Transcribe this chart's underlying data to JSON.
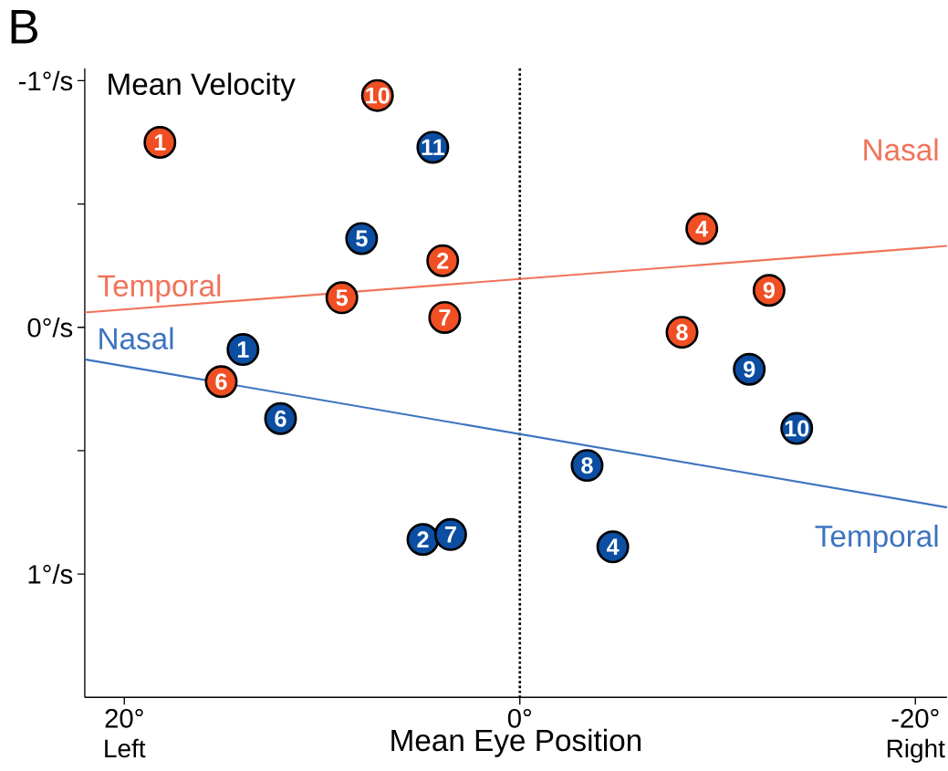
{
  "chart_data": {
    "type": "scatter",
    "title": "B",
    "xlabel": "Mean Eye Position",
    "ylabel": "Mean Velocity",
    "xlim": [
      22,
      -21.6
    ],
    "ylim": [
      1.5,
      -1.05
    ],
    "xticks": [
      {
        "value": 20,
        "label": "20°"
      },
      {
        "value": 0,
        "label": "0°"
      },
      {
        "value": -20,
        "label": "-20°"
      }
    ],
    "yticks": [
      {
        "value": -1,
        "label": "-1°/s"
      },
      {
        "value": -0.5,
        "label": null
      },
      {
        "value": 0,
        "label": "0°/s"
      },
      {
        "value": 0.5,
        "label": null
      },
      {
        "value": 1,
        "label": "1°/s"
      }
    ],
    "grid": false,
    "series": [
      {
        "type": "line",
        "marker": "none",
        "color": "#f0735a",
        "x": [
          22,
          -21.6
        ],
        "values": [
          -0.06,
          -0.33
        ]
      },
      {
        "type": "line",
        "marker": "none",
        "color": "#3d73c0",
        "x": [
          22,
          -21.6
        ],
        "values": [
          0.13,
          0.73
        ]
      },
      {
        "marker": "circle",
        "color": "#f04e23",
        "x": [
          18.2,
          7.2,
          -9.2,
          3.9,
          -12.6,
          9.0,
          3.8,
          -8.2,
          15.1
        ],
        "values": [
          -0.75,
          -0.94,
          -0.4,
          -0.27,
          -0.15,
          -0.12,
          -0.04,
          0.02,
          0.22
        ]
      },
      {
        "marker": "circle",
        "color": "#0b4ea2",
        "x": [
          4.4,
          8.0,
          14.0,
          12.1,
          -11.6,
          -14.0,
          -3.4,
          4.9,
          3.5,
          -4.7
        ],
        "values": [
          -0.73,
          -0.36,
          0.09,
          0.37,
          0.17,
          0.41,
          0.56,
          0.86,
          0.84,
          0.89
        ]
      }
    ],
    "ref_lines": [
      {
        "axis": "x",
        "value": 0,
        "color": "#000000",
        "line_style": "dotted"
      }
    ],
    "annotations": [
      "Temporal",
      "Nasal",
      "Nasal",
      "Temporal",
      "Left",
      "Right",
      {
        "text": "1",
        "x": 18.2,
        "y": -0.75
      },
      {
        "text": "10",
        "x": 7.2,
        "y": -0.94
      },
      {
        "text": "4",
        "x": -9.2,
        "y": -0.4
      },
      {
        "text": "2",
        "x": 3.9,
        "y": -0.27
      },
      {
        "text": "9",
        "x": -12.6,
        "y": -0.15
      },
      {
        "text": "5",
        "x": 9.0,
        "y": -0.12
      },
      {
        "text": "7",
        "x": 3.8,
        "y": -0.04
      },
      {
        "text": "8",
        "x": -8.2,
        "y": 0.02
      },
      {
        "text": "6",
        "x": 15.1,
        "y": 0.22
      },
      {
        "text": "11",
        "x": 4.4,
        "y": -0.73
      },
      {
        "text": "5",
        "x": 8.0,
        "y": -0.36
      },
      {
        "text": "1",
        "x": 14.0,
        "y": 0.09
      },
      {
        "text": "6",
        "x": 12.1,
        "y": 0.37
      },
      {
        "text": "9",
        "x": -11.6,
        "y": 0.17
      },
      {
        "text": "10",
        "x": -14.0,
        "y": 0.41
      },
      {
        "text": "8",
        "x": -3.4,
        "y": 0.56
      },
      {
        "text": "2",
        "x": 4.9,
        "y": 0.86
      },
      {
        "text": "7",
        "x": 3.5,
        "y": 0.84
      },
      {
        "text": "4",
        "x": -4.7,
        "y": 0.89
      }
    ]
  }
}
